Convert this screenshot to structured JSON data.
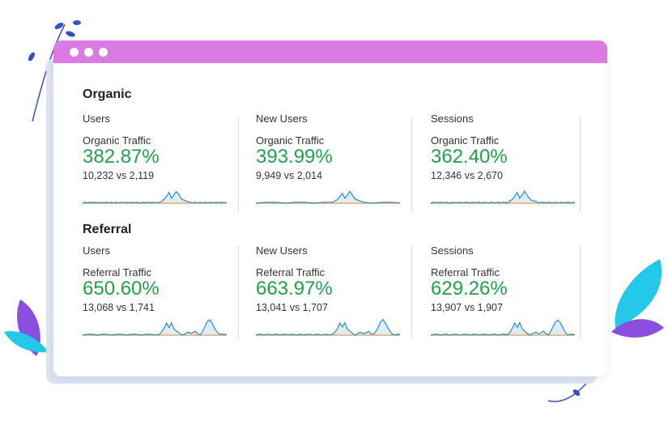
{
  "window": {
    "accent": "#d97be2"
  },
  "sections": [
    {
      "title": "Organic",
      "cards": [
        {
          "metric": "Users",
          "label": "Organic Traffic",
          "percent": "382.87%",
          "comparison": "10,232 vs 2,119"
        },
        {
          "metric": "New Users",
          "label": "Organic Traffic",
          "percent": "393.99%",
          "comparison": "9,949 vs 2,014"
        },
        {
          "metric": "Sessions",
          "label": "Organic Traffic",
          "percent": "362.40%",
          "comparison": "12,346 vs 2,670"
        }
      ]
    },
    {
      "title": "Referral",
      "cards": [
        {
          "metric": "Users",
          "label": "Referral Traffic",
          "percent": "650.60%",
          "comparison": "13,068 vs 1,741"
        },
        {
          "metric": "New Users",
          "label": "Referral Traffic",
          "percent": "663.97%",
          "comparison": "13,041 vs 1,707"
        },
        {
          "metric": "Sessions",
          "label": "Referral Traffic",
          "percent": "629.26%",
          "comparison": "13,907 vs 1,907"
        }
      ]
    }
  ],
  "colors": {
    "positive": "#1fa24a",
    "current_series": "#2b8cc4",
    "previous_series": "#f0a05a"
  }
}
